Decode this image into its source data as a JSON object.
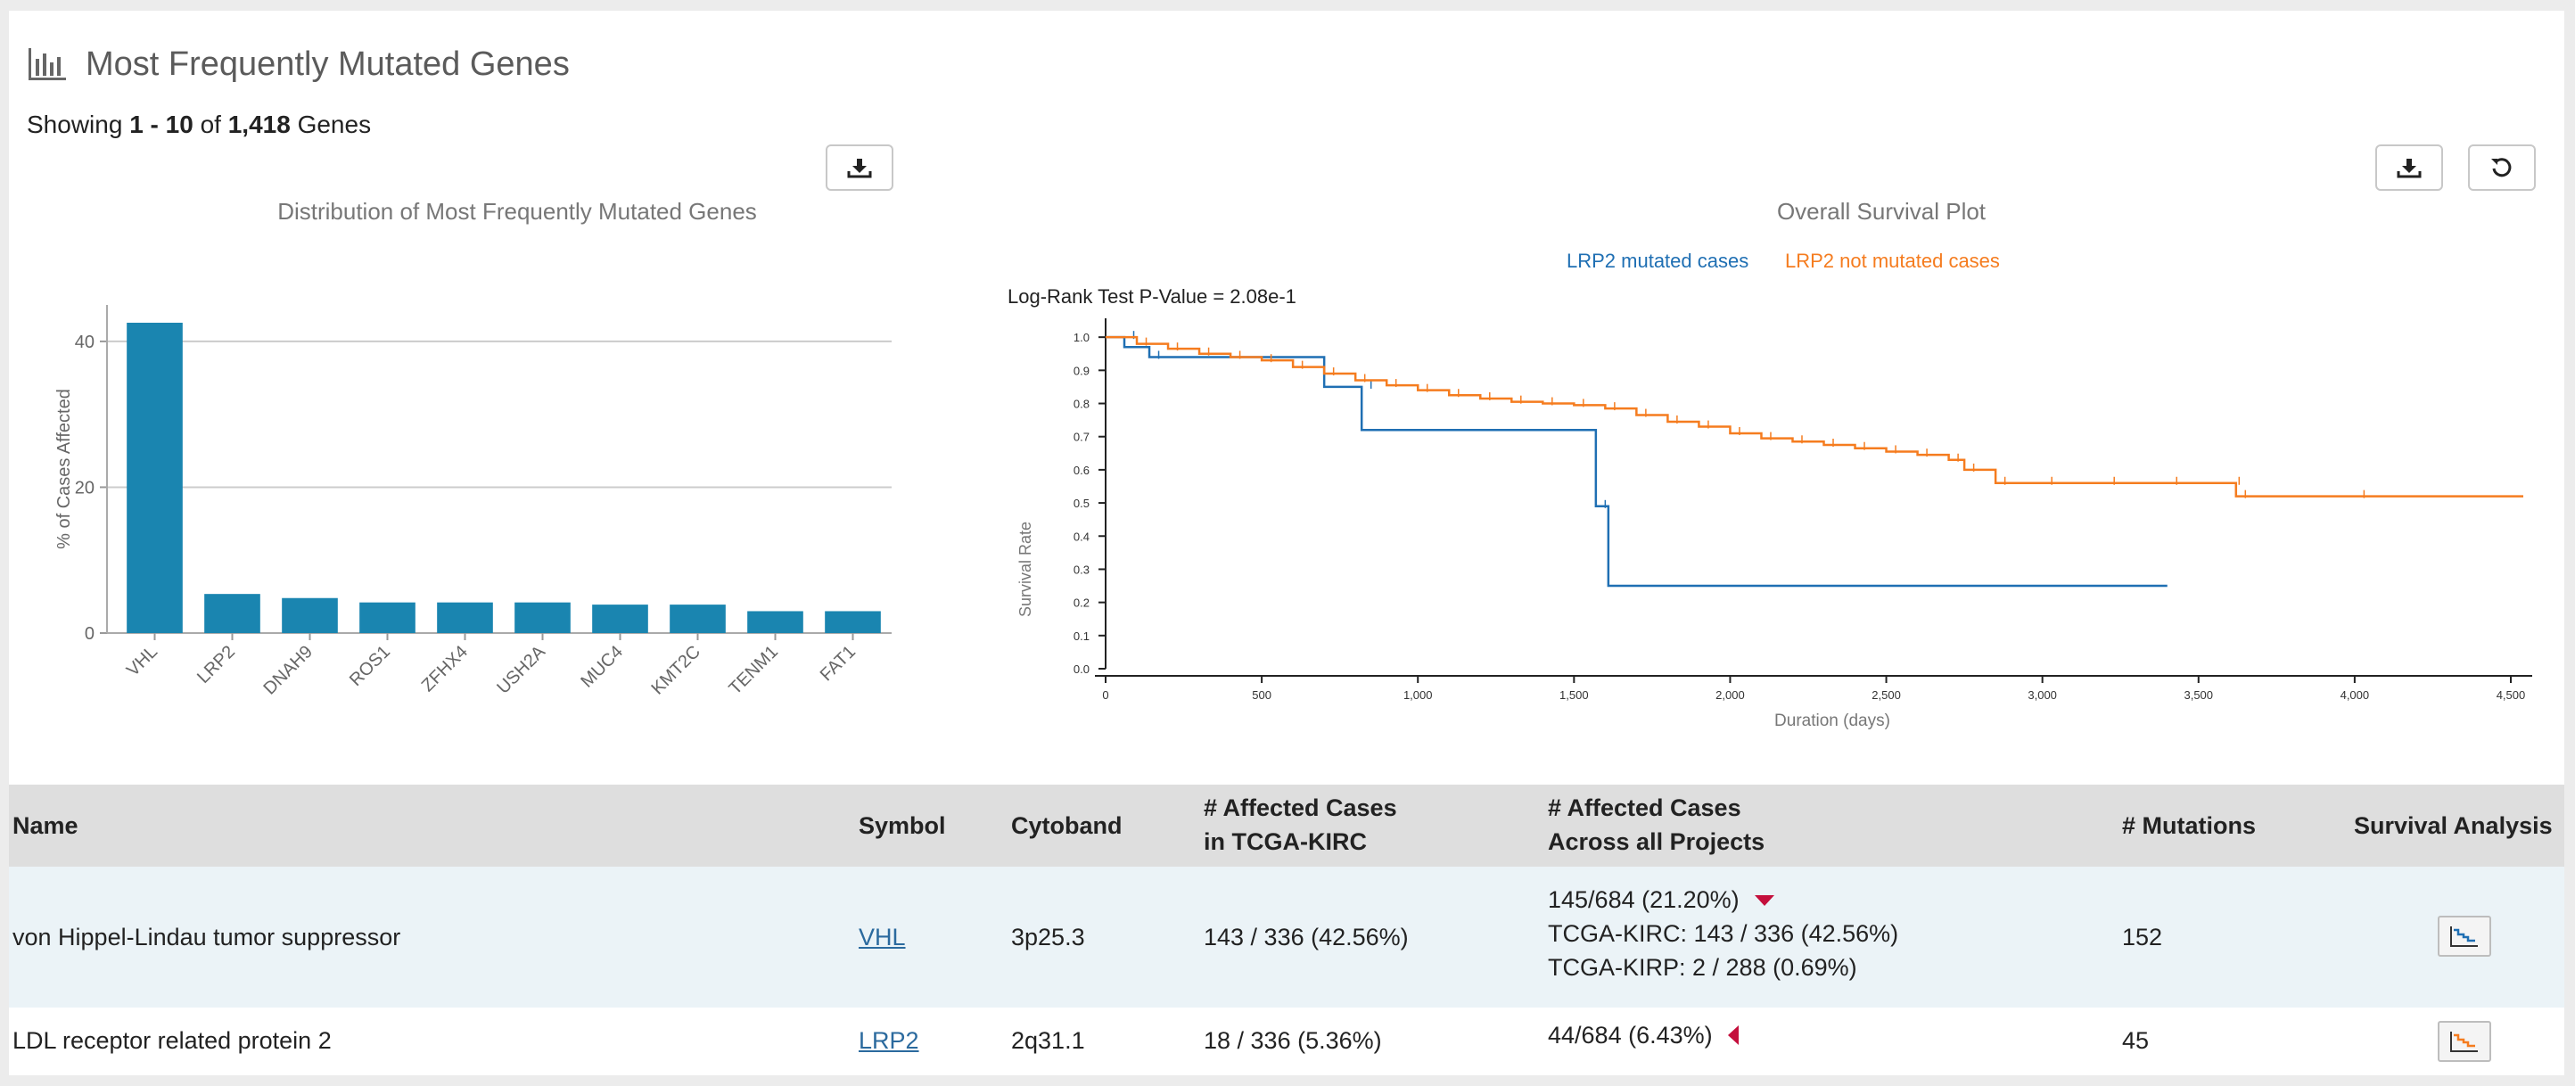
{
  "header": {
    "title": "Most Frequently Mutated Genes",
    "icon": "bar-chart-icon"
  },
  "showing": {
    "prefix": "Showing",
    "range": "1 - 10",
    "of": "of",
    "total": "1,418",
    "suffix": "Genes"
  },
  "toolbar": {
    "download_icon": "download-icon",
    "reset_icon": "reset-icon"
  },
  "bar_chart": {
    "title": "Distribution of Most Frequently Mutated Genes",
    "ylabel": "% of Cases Affected",
    "color": "#1a85b0"
  },
  "survival": {
    "title": "Overall Survival Plot",
    "legend_mutated": "LRP2 mutated cases",
    "legend_not_mutated": "LRP2 not mutated cases",
    "pvalue": "Log-Rank Test P-Value = 2.08e-1",
    "ylabel": "Survival Rate",
    "xlabel": "Duration (days)",
    "color_mutated": "#1f6fb3",
    "color_not_mutated": "#f57c1f"
  },
  "chart_data": [
    {
      "type": "bar",
      "title": "Distribution of Most Frequently Mutated Genes",
      "categories": [
        "VHL",
        "LRP2",
        "DNAH9",
        "ROS1",
        "ZFHX4",
        "USH2A",
        "MUC4",
        "KMT2C",
        "TENM1",
        "FAT1"
      ],
      "values": [
        42.56,
        5.36,
        4.8,
        4.2,
        4.2,
        4.2,
        3.9,
        3.9,
        3.0,
        3.0
      ],
      "ylabel": "% of Cases Affected",
      "yticks": [
        0,
        20,
        40
      ],
      "ylim": [
        0,
        45
      ]
    },
    {
      "type": "line",
      "title": "Overall Survival Plot",
      "xlabel": "Duration (days)",
      "ylabel": "Survival Rate",
      "xticks": [
        "0",
        "500",
        "1,000",
        "1,500",
        "2,000",
        "2,500",
        "3,000",
        "3,500",
        "4,000",
        "4,500"
      ],
      "xtick_values": [
        0,
        500,
        1000,
        1500,
        2000,
        2500,
        3000,
        3500,
        4000,
        4500
      ],
      "yticks": [
        "0.0",
        "0.1",
        "0.2",
        "0.3",
        "0.4",
        "0.5",
        "0.6",
        "0.7",
        "0.8",
        "0.9",
        "1.0"
      ],
      "xlim": [
        0,
        4540
      ],
      "ylim": [
        0,
        1.03
      ],
      "series": [
        {
          "name": "LRP2 mutated cases",
          "x": [
            0,
            60,
            60,
            140,
            140,
            700,
            700,
            820,
            820,
            1570,
            1570,
            1610,
            1610,
            3400
          ],
          "y": [
            1.0,
            1.0,
            0.97,
            0.97,
            0.94,
            0.94,
            0.85,
            0.85,
            0.72,
            0.72,
            0.49,
            0.49,
            0.25,
            0.25
          ]
        },
        {
          "name": "LRP2 not mutated cases",
          "x": [
            0,
            100,
            200,
            300,
            400,
            500,
            600,
            700,
            800,
            900,
            1000,
            1100,
            1200,
            1300,
            1400,
            1500,
            1600,
            1700,
            1800,
            1900,
            2000,
            2100,
            2200,
            2300,
            2400,
            2500,
            2600,
            2700,
            2750,
            2850,
            3000,
            3200,
            3400,
            3600,
            3620,
            4000,
            4540
          ],
          "y": [
            1.0,
            0.98,
            0.965,
            0.95,
            0.94,
            0.93,
            0.91,
            0.89,
            0.87,
            0.855,
            0.84,
            0.825,
            0.815,
            0.805,
            0.8,
            0.795,
            0.785,
            0.765,
            0.745,
            0.73,
            0.71,
            0.695,
            0.685,
            0.675,
            0.665,
            0.655,
            0.645,
            0.63,
            0.6,
            0.56,
            0.56,
            0.56,
            0.56,
            0.56,
            0.52,
            0.52,
            0.52
          ]
        }
      ]
    }
  ],
  "table": {
    "columns": {
      "name": "Name",
      "symbol": "Symbol",
      "cytoband": "Cytoband",
      "affected_l1": "# Affected Cases",
      "affected_l2": "in TCGA-KIRC",
      "across_l1": "# Affected Cases",
      "across_l2": "Across all Projects",
      "mutations": "# Mutations",
      "survival": "Survival Analysis"
    },
    "rows": [
      {
        "name": "von Hippel-Lindau tumor suppressor",
        "symbol": "VHL",
        "cytoband": "3p25.3",
        "affected": "143 / 336 (42.56%)",
        "across": "145/684 (21.20%)",
        "across_detail_1": "TCGA-KIRC: 143 / 336 (42.56%)",
        "across_detail_2": "TCGA-KIRP: 2 / 288 (0.69%)",
        "mutations": "152",
        "survival_icon": "survival-plot-icon"
      },
      {
        "name": "LDL receptor related protein 2",
        "symbol": "LRP2",
        "cytoband": "2q31.1",
        "affected": "18 / 336 (5.36%)",
        "across": "44/684 (6.43%)",
        "mutations": "45",
        "survival_icon": "survival-plot-icon"
      }
    ]
  }
}
